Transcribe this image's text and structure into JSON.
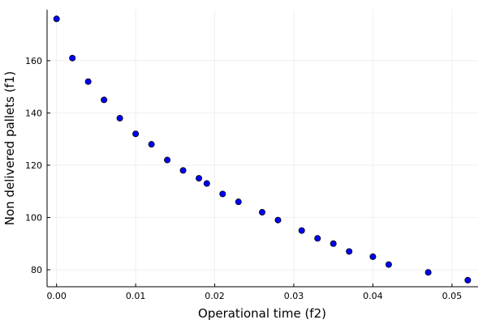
{
  "chart_data": {
    "type": "scatter",
    "title": "",
    "xlabel": "Operational time (f2)",
    "ylabel": "Non delivered pallets (f1)",
    "xlim": [
      -0.0012,
      0.0533
    ],
    "ylim": [
      73.5,
      179.5
    ],
    "xticks": [
      0.0,
      0.01,
      0.02,
      0.03,
      0.04,
      0.05
    ],
    "xtick_labels": [
      "0.00",
      "0.01",
      "0.02",
      "0.03",
      "0.04",
      "0.05"
    ],
    "yticks": [
      80,
      100,
      120,
      140,
      160
    ],
    "ytick_labels": [
      "80",
      "100",
      "120",
      "140",
      "160"
    ],
    "grid": true,
    "legend": "none",
    "marker_color": "#0000ff",
    "marker_edge_color": "#000000",
    "series": [
      {
        "x": [
          0.0,
          0.002,
          0.004,
          0.006,
          0.008,
          0.01,
          0.012,
          0.014,
          0.016,
          0.018,
          0.019,
          0.021,
          0.023,
          0.026,
          0.028,
          0.031,
          0.033,
          0.035,
          0.037,
          0.04,
          0.042,
          0.047,
          0.052
        ],
        "y": [
          176,
          161,
          152,
          145,
          138,
          132,
          128,
          122,
          118,
          115,
          113,
          109,
          106,
          102,
          99,
          95,
          92,
          90,
          87,
          85,
          82,
          79,
          76
        ]
      }
    ]
  }
}
